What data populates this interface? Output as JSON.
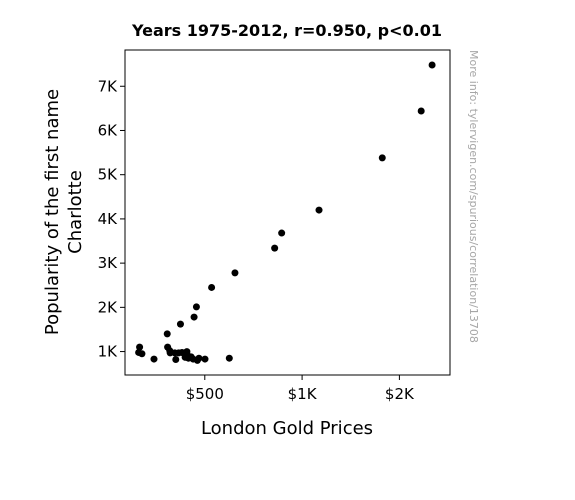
{
  "chart_data": {
    "type": "scatter",
    "title": "Years 1975-2012, r=0.950, p<0.01",
    "xlabel": "London Gold Prices",
    "ylabel_lines": [
      "Popularity of the first name",
      "Charlotte"
    ],
    "watermark": "More info: tylervigen.com/spurious/correlation/13708",
    "xlim": [
      90,
      1760
    ],
    "ylim": [
      470,
      7820
    ],
    "xscale": "linear",
    "yscale": "linear",
    "grid": false,
    "legend": "none",
    "point_color": "#000000",
    "x_ticks": [
      {
        "value": 500,
        "label": "$500"
      },
      {
        "value": 1000,
        "label": "$1K"
      },
      {
        "value": 1500,
        "label": "$2K"
      }
    ],
    "y_ticks": [
      {
        "value": 1000,
        "label": "1K"
      },
      {
        "value": 2000,
        "label": "2K"
      },
      {
        "value": 3000,
        "label": "3K"
      },
      {
        "value": 4000,
        "label": "4K"
      },
      {
        "value": 5000,
        "label": "5K"
      },
      {
        "value": 6000,
        "label": "6K"
      },
      {
        "value": 7000,
        "label": "7K"
      }
    ],
    "points": [
      {
        "x": 160,
        "y": 980
      },
      {
        "x": 165,
        "y": 1100
      },
      {
        "x": 177,
        "y": 950
      },
      {
        "x": 239,
        "y": 830
      },
      {
        "x": 307,
        "y": 1400
      },
      {
        "x": 309,
        "y": 1100
      },
      {
        "x": 320,
        "y": 1020
      },
      {
        "x": 322,
        "y": 970
      },
      {
        "x": 346,
        "y": 970
      },
      {
        "x": 351,
        "y": 820
      },
      {
        "x": 366,
        "y": 970
      },
      {
        "x": 375,
        "y": 1620
      },
      {
        "x": 383,
        "y": 980
      },
      {
        "x": 392,
        "y": 960
      },
      {
        "x": 399,
        "y": 870
      },
      {
        "x": 408,
        "y": 1000
      },
      {
        "x": 411,
        "y": 920
      },
      {
        "x": 416,
        "y": 850
      },
      {
        "x": 430,
        "y": 880
      },
      {
        "x": 440,
        "y": 830
      },
      {
        "x": 445,
        "y": 1780
      },
      {
        "x": 457,
        "y": 2010
      },
      {
        "x": 462,
        "y": 800
      },
      {
        "x": 470,
        "y": 850
      },
      {
        "x": 501,
        "y": 830
      },
      {
        "x": 535,
        "y": 2450
      },
      {
        "x": 626,
        "y": 850
      },
      {
        "x": 655,
        "y": 2780
      },
      {
        "x": 859,
        "y": 3340
      },
      {
        "x": 895,
        "y": 3680
      },
      {
        "x": 1087,
        "y": 4200
      },
      {
        "x": 1412,
        "y": 5380
      },
      {
        "x": 1612,
        "y": 6440
      },
      {
        "x": 1668,
        "y": 7480
      }
    ]
  }
}
